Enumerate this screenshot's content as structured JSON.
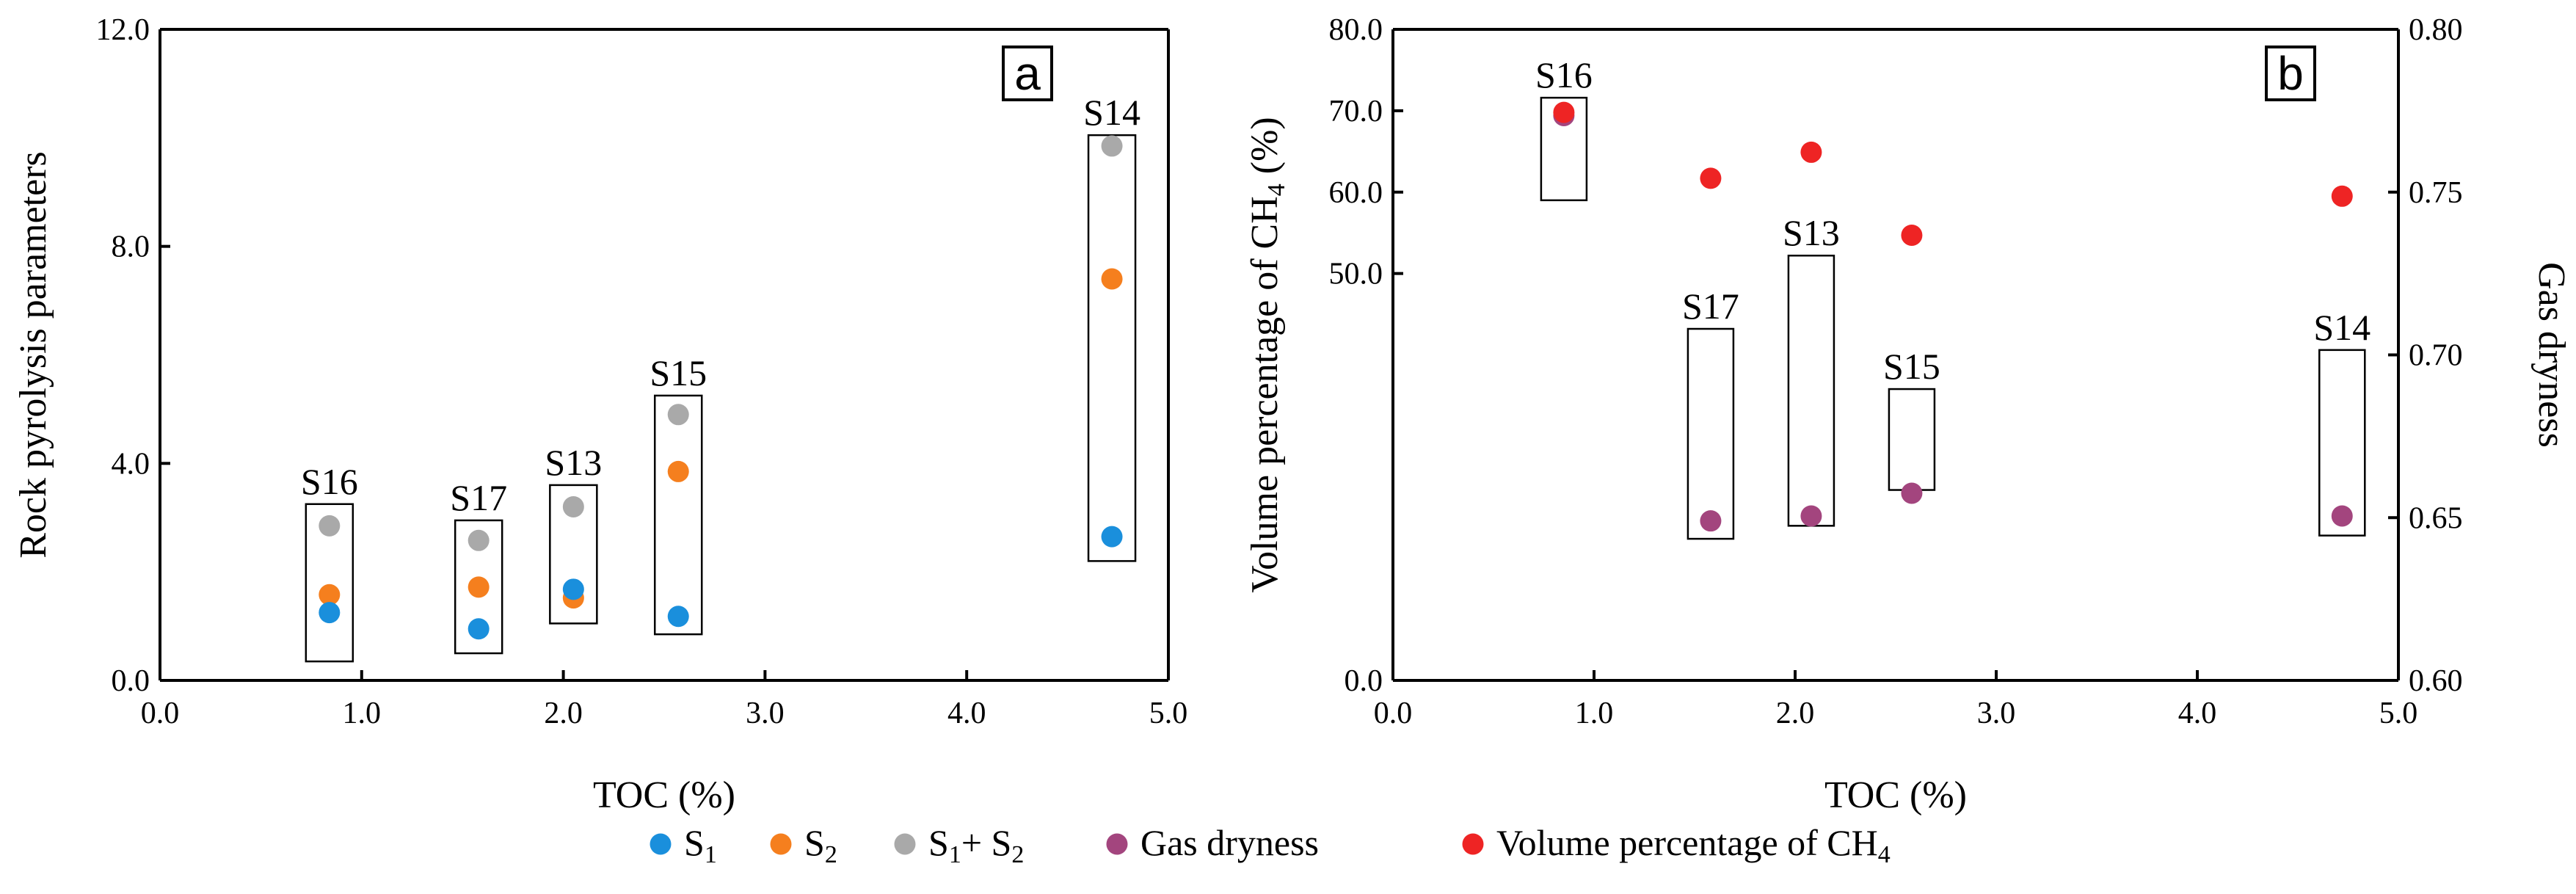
{
  "chart_data": {
    "legend": [
      {
        "key": "s1",
        "label": "S1",
        "color": "#1a8fdc"
      },
      {
        "key": "s2",
        "label": "S2",
        "color": "#f57f1e"
      },
      {
        "key": "s1s2",
        "label": "S1+ S2",
        "color": "#a9a9a9"
      },
      {
        "key": "dryness",
        "label": "Gas dryness",
        "color": "#a3457e"
      },
      {
        "key": "ch4",
        "label": "Volume percentage of CH4",
        "color": "#ee2424"
      }
    ],
    "panels": [
      {
        "id": "a",
        "type": "scatter",
        "panel_label": "a",
        "xlabel": "TOC (%)",
        "ylabel": "Rock pyrolysis parameters",
        "xlim": [
          0,
          5
        ],
        "ylim": [
          0,
          12
        ],
        "xticks": [
          "0.0",
          "1.0",
          "2.0",
          "3.0",
          "4.0",
          "5.0"
        ],
        "yticks": [
          "0.0",
          "4.0",
          "8.0",
          "12.0"
        ],
        "ytick_values": [
          0,
          4,
          8,
          12
        ],
        "samples": [
          {
            "name": "S16",
            "toc": 0.84,
            "s1": 1.25,
            "s2": 1.58,
            "s1s2": 2.85,
            "box": [
              0.35,
              3.25
            ]
          },
          {
            "name": "S17",
            "toc": 1.58,
            "s1": 0.95,
            "s2": 1.72,
            "s1s2": 2.58,
            "box": [
              0.5,
              2.95
            ]
          },
          {
            "name": "S13",
            "toc": 2.05,
            "s1": 1.68,
            "s2": 1.52,
            "s1s2": 3.2,
            "box": [
              1.05,
              3.6
            ]
          },
          {
            "name": "S15",
            "toc": 2.57,
            "s1": 1.18,
            "s2": 3.85,
            "s1s2": 4.9,
            "box": [
              0.85,
              5.25
            ]
          },
          {
            "name": "S14",
            "toc": 4.72,
            "s1": 2.65,
            "s2": 7.4,
            "s1s2": 9.85,
            "box": [
              2.2,
              10.05
            ]
          }
        ]
      },
      {
        "id": "b",
        "type": "scatter",
        "panel_label": "b",
        "xlabel": "TOC (%)",
        "ylabel_main": "Volume percentage of CH",
        "ylabel_sub": "4",
        "ylabel_tail": " (%)",
        "y2label": "Gas dryness",
        "xlim": [
          0,
          5
        ],
        "ylim": [
          0,
          80
        ],
        "y2lim": [
          0.6,
          0.8
        ],
        "xticks": [
          "0.0",
          "1.0",
          "2.0",
          "3.0",
          "4.0",
          "5.0"
        ],
        "yticks": [
          "0.0",
          "50.0",
          "60.0",
          "70.0",
          "80.0"
        ],
        "ytick_values": [
          0,
          50,
          60,
          70,
          80
        ],
        "y2ticks": [
          "0.60",
          "0.65",
          "0.70",
          "0.75",
          "0.80"
        ],
        "y2tick_values": [
          0.6,
          0.65,
          0.7,
          0.75,
          0.8
        ],
        "samples": [
          {
            "name": "S16",
            "toc": 0.85,
            "ch4": 69.8,
            "dryness": 0.7735,
            "box": [
              0.7475,
              0.779
            ]
          },
          {
            "name": "S17",
            "toc": 1.58,
            "ch4": 61.7,
            "dryness": 0.649,
            "box": [
              0.6435,
              0.708
            ]
          },
          {
            "name": "S13",
            "toc": 2.08,
            "ch4": 64.9,
            "dryness": 0.6505,
            "box": [
              0.6475,
              0.7305
            ]
          },
          {
            "name": "S15",
            "toc": 2.58,
            "ch4": 54.7,
            "dryness": 0.6575,
            "box": [
              0.6585,
              0.6895
            ]
          },
          {
            "name": "S14",
            "toc": 4.72,
            "ch4": 59.5,
            "dryness": 0.6505,
            "box": [
              0.6445,
              0.7015
            ]
          }
        ]
      }
    ]
  }
}
